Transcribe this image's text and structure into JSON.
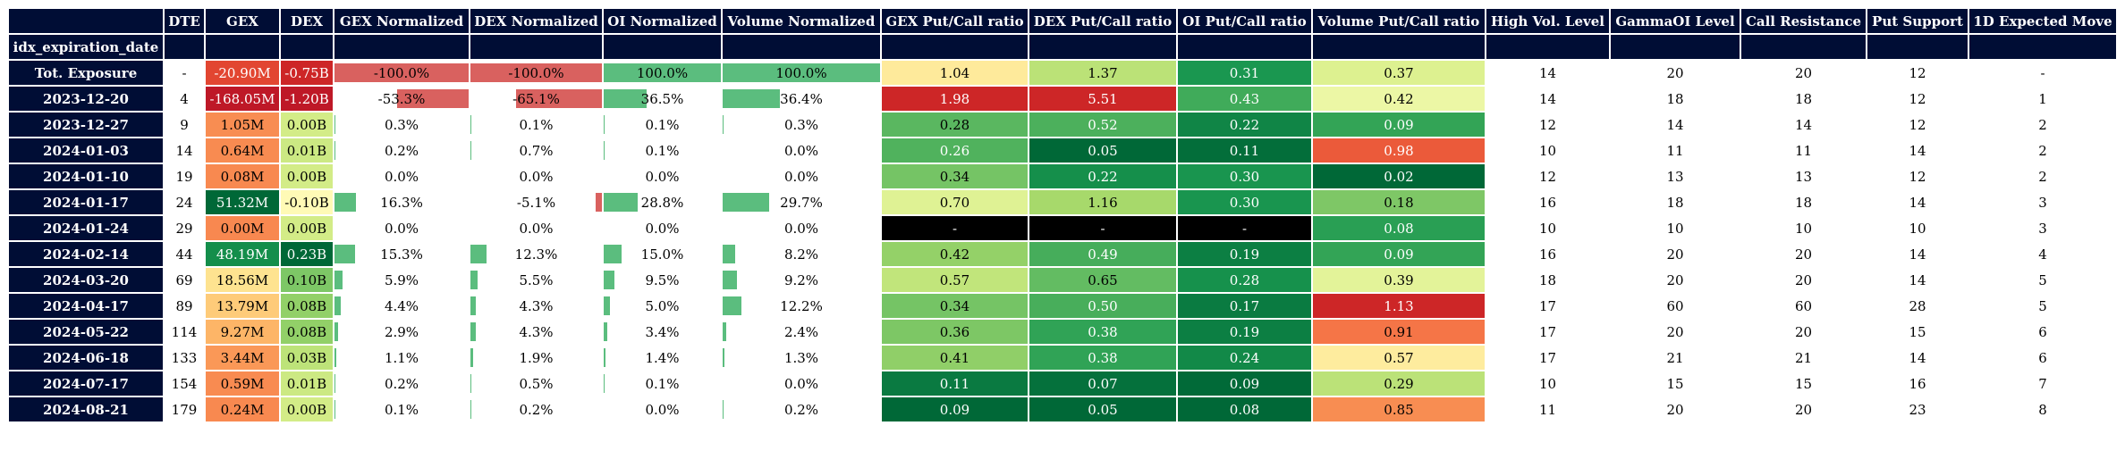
{
  "columns": [
    "DTE",
    "GEX",
    "DEX",
    "GEX Normalized",
    "DEX Normalized",
    "OI Normalized",
    "Volume Normalized",
    "GEX Put/Call ratio",
    "DEX Put/Call ratio",
    "OI Put/Call ratio",
    "Volume Put/Call ratio",
    "High Vol. Level",
    "GammaOI Level",
    "Call Resistance",
    "Put Support",
    "1D Expected Move"
  ],
  "index_name": "idx_expiration_date",
  "colors": {
    "header_bg": "#000d35",
    "neg_bar": "#d9615f",
    "pos_bar": "#5bbd7e",
    "na_cell": "#000000"
  },
  "chart_data": {
    "type": "table",
    "rows": [
      {
        "label": "Tot. Exposure",
        "dte": "-",
        "gex": "-20.90M",
        "gex_v": -20.9,
        "dex": "-0.75B",
        "dex_v": -0.75,
        "gex_norm": "-100.0%",
        "gex_norm_v": -100.0,
        "dex_norm": "-100.0%",
        "dex_norm_v": -100.0,
        "oi_norm": "100.0%",
        "oi_norm_v": 100.0,
        "vol_norm": "100.0%",
        "vol_norm_v": 100.0,
        "gex_pc": "1.04",
        "dex_pc": "1.37",
        "oi_pc": "0.31",
        "vol_pc": "0.37",
        "high_vol": "14",
        "gamma_oi": "20",
        "call_res": "20",
        "put_sup": "12",
        "move": "-"
      },
      {
        "label": "2023-12-20",
        "dte": "4",
        "gex": "-168.05M",
        "gex_v": -168.05,
        "dex": "-1.20B",
        "dex_v": -1.2,
        "gex_norm": "-53.3%",
        "gex_norm_v": -53.3,
        "dex_norm": "-65.1%",
        "dex_norm_v": -65.1,
        "oi_norm": "36.5%",
        "oi_norm_v": 36.5,
        "vol_norm": "36.4%",
        "vol_norm_v": 36.4,
        "gex_pc": "1.98",
        "dex_pc": "5.51",
        "oi_pc": "0.43",
        "vol_pc": "0.42",
        "high_vol": "14",
        "gamma_oi": "18",
        "call_res": "18",
        "put_sup": "12",
        "move": "1"
      },
      {
        "label": "2023-12-27",
        "dte": "9",
        "gex": "1.05M",
        "gex_v": 1.05,
        "dex": "0.00B",
        "dex_v": 0.0,
        "gex_norm": "0.3%",
        "gex_norm_v": 0.3,
        "dex_norm": "0.1%",
        "dex_norm_v": 0.1,
        "oi_norm": "0.1%",
        "oi_norm_v": 0.1,
        "vol_norm": "0.3%",
        "vol_norm_v": 0.3,
        "gex_pc": "0.28",
        "dex_pc": "0.52",
        "oi_pc": "0.22",
        "vol_pc": "0.09",
        "high_vol": "12",
        "gamma_oi": "14",
        "call_res": "14",
        "put_sup": "12",
        "move": "2"
      },
      {
        "label": "2024-01-03",
        "dte": "14",
        "gex": "0.64M",
        "gex_v": 0.64,
        "dex": "0.01B",
        "dex_v": 0.01,
        "gex_norm": "0.2%",
        "gex_norm_v": 0.2,
        "dex_norm": "0.7%",
        "dex_norm_v": 0.7,
        "oi_norm": "0.1%",
        "oi_norm_v": 0.1,
        "vol_norm": "0.0%",
        "vol_norm_v": 0.0,
        "gex_pc": "0.26",
        "dex_pc": "0.05",
        "oi_pc": "0.11",
        "vol_pc": "0.98",
        "high_vol": "10",
        "gamma_oi": "11",
        "call_res": "11",
        "put_sup": "14",
        "move": "2"
      },
      {
        "label": "2024-01-10",
        "dte": "19",
        "gex": "0.08M",
        "gex_v": 0.08,
        "dex": "0.00B",
        "dex_v": 0.0,
        "gex_norm": "0.0%",
        "gex_norm_v": 0.0,
        "dex_norm": "0.0%",
        "dex_norm_v": 0.0,
        "oi_norm": "0.0%",
        "oi_norm_v": 0.0,
        "vol_norm": "0.0%",
        "vol_norm_v": 0.0,
        "gex_pc": "0.34",
        "dex_pc": "0.22",
        "oi_pc": "0.30",
        "vol_pc": "0.02",
        "high_vol": "12",
        "gamma_oi": "13",
        "call_res": "13",
        "put_sup": "12",
        "move": "2"
      },
      {
        "label": "2024-01-17",
        "dte": "24",
        "gex": "51.32M",
        "gex_v": 51.32,
        "dex": "-0.10B",
        "dex_v": -0.1,
        "gex_norm": "16.3%",
        "gex_norm_v": 16.3,
        "dex_norm": "-5.1%",
        "dex_norm_v": -5.1,
        "oi_norm": "28.8%",
        "oi_norm_v": 28.8,
        "vol_norm": "29.7%",
        "vol_norm_v": 29.7,
        "gex_pc": "0.70",
        "dex_pc": "1.16",
        "oi_pc": "0.30",
        "vol_pc": "0.18",
        "high_vol": "16",
        "gamma_oi": "18",
        "call_res": "18",
        "put_sup": "14",
        "move": "3"
      },
      {
        "label": "2024-01-24",
        "dte": "29",
        "gex": "0.00M",
        "gex_v": 0.0,
        "dex": "0.00B",
        "dex_v": 0.0,
        "gex_norm": "0.0%",
        "gex_norm_v": 0.0,
        "dex_norm": "0.0%",
        "dex_norm_v": 0.0,
        "oi_norm": "0.0%",
        "oi_norm_v": 0.0,
        "vol_norm": "0.0%",
        "vol_norm_v": 0.0,
        "gex_pc": "-",
        "dex_pc": "-",
        "oi_pc": "-",
        "vol_pc": "0.08",
        "high_vol": "10",
        "gamma_oi": "10",
        "call_res": "10",
        "put_sup": "10",
        "move": "3"
      },
      {
        "label": "2024-02-14",
        "dte": "44",
        "gex": "48.19M",
        "gex_v": 48.19,
        "dex": "0.23B",
        "dex_v": 0.23,
        "gex_norm": "15.3%",
        "gex_norm_v": 15.3,
        "dex_norm": "12.3%",
        "dex_norm_v": 12.3,
        "oi_norm": "15.0%",
        "oi_norm_v": 15.0,
        "vol_norm": "8.2%",
        "vol_norm_v": 8.2,
        "gex_pc": "0.42",
        "dex_pc": "0.49",
        "oi_pc": "0.19",
        "vol_pc": "0.09",
        "high_vol": "16",
        "gamma_oi": "20",
        "call_res": "20",
        "put_sup": "14",
        "move": "4"
      },
      {
        "label": "2024-03-20",
        "dte": "69",
        "gex": "18.56M",
        "gex_v": 18.56,
        "dex": "0.10B",
        "dex_v": 0.1,
        "gex_norm": "5.9%",
        "gex_norm_v": 5.9,
        "dex_norm": "5.5%",
        "dex_norm_v": 5.5,
        "oi_norm": "9.5%",
        "oi_norm_v": 9.5,
        "vol_norm": "9.2%",
        "vol_norm_v": 9.2,
        "gex_pc": "0.57",
        "dex_pc": "0.65",
        "oi_pc": "0.28",
        "vol_pc": "0.39",
        "high_vol": "18",
        "gamma_oi": "20",
        "call_res": "20",
        "put_sup": "14",
        "move": "5"
      },
      {
        "label": "2024-04-17",
        "dte": "89",
        "gex": "13.79M",
        "gex_v": 13.79,
        "dex": "0.08B",
        "dex_v": 0.08,
        "gex_norm": "4.4%",
        "gex_norm_v": 4.4,
        "dex_norm": "4.3%",
        "dex_norm_v": 4.3,
        "oi_norm": "5.0%",
        "oi_norm_v": 5.0,
        "vol_norm": "12.2%",
        "vol_norm_v": 12.2,
        "gex_pc": "0.34",
        "dex_pc": "0.50",
        "oi_pc": "0.17",
        "vol_pc": "1.13",
        "high_vol": "17",
        "gamma_oi": "60",
        "call_res": "60",
        "put_sup": "28",
        "move": "5"
      },
      {
        "label": "2024-05-22",
        "dte": "114",
        "gex": "9.27M",
        "gex_v": 9.27,
        "dex": "0.08B",
        "dex_v": 0.08,
        "gex_norm": "2.9%",
        "gex_norm_v": 2.9,
        "dex_norm": "4.3%",
        "dex_norm_v": 4.3,
        "oi_norm": "3.4%",
        "oi_norm_v": 3.4,
        "vol_norm": "2.4%",
        "vol_norm_v": 2.4,
        "gex_pc": "0.36",
        "dex_pc": "0.38",
        "oi_pc": "0.19",
        "vol_pc": "0.91",
        "high_vol": "17",
        "gamma_oi": "20",
        "call_res": "20",
        "put_sup": "15",
        "move": "6"
      },
      {
        "label": "2024-06-18",
        "dte": "133",
        "gex": "3.44M",
        "gex_v": 3.44,
        "dex": "0.03B",
        "dex_v": 0.03,
        "gex_norm": "1.1%",
        "gex_norm_v": 1.1,
        "dex_norm": "1.9%",
        "dex_norm_v": 1.9,
        "oi_norm": "1.4%",
        "oi_norm_v": 1.4,
        "vol_norm": "1.3%",
        "vol_norm_v": 1.3,
        "gex_pc": "0.41",
        "dex_pc": "0.38",
        "oi_pc": "0.24",
        "vol_pc": "0.57",
        "high_vol": "17",
        "gamma_oi": "21",
        "call_res": "21",
        "put_sup": "14",
        "move": "6"
      },
      {
        "label": "2024-07-17",
        "dte": "154",
        "gex": "0.59M",
        "gex_v": 0.59,
        "dex": "0.01B",
        "dex_v": 0.01,
        "gex_norm": "0.2%",
        "gex_norm_v": 0.2,
        "dex_norm": "0.5%",
        "dex_norm_v": 0.5,
        "oi_norm": "0.1%",
        "oi_norm_v": 0.1,
        "vol_norm": "0.0%",
        "vol_norm_v": 0.0,
        "gex_pc": "0.11",
        "dex_pc": "0.07",
        "oi_pc": "0.09",
        "vol_pc": "0.29",
        "high_vol": "10",
        "gamma_oi": "15",
        "call_res": "15",
        "put_sup": "16",
        "move": "7"
      },
      {
        "label": "2024-08-21",
        "dte": "179",
        "gex": "0.24M",
        "gex_v": 0.24,
        "dex": "0.00B",
        "dex_v": 0.0,
        "gex_norm": "0.1%",
        "gex_norm_v": 0.1,
        "dex_norm": "0.2%",
        "dex_norm_v": 0.2,
        "oi_norm": "0.0%",
        "oi_norm_v": 0.0,
        "vol_norm": "0.2%",
        "vol_norm_v": 0.2,
        "gex_pc": "0.09",
        "dex_pc": "0.05",
        "oi_pc": "0.08",
        "vol_pc": "0.85",
        "high_vol": "11",
        "gamma_oi": "20",
        "call_res": "20",
        "put_sup": "23",
        "move": "8"
      }
    ]
  }
}
